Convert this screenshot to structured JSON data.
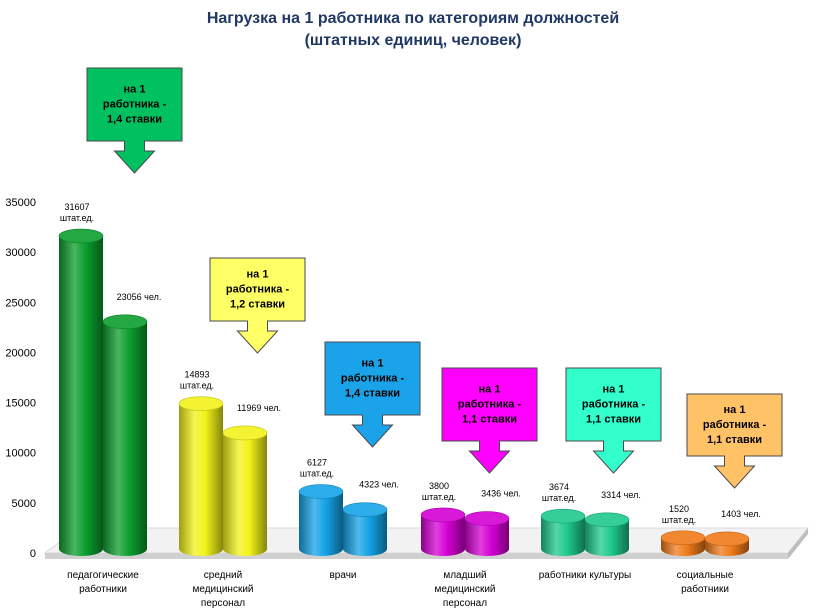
{
  "chart_data": {
    "type": "bar",
    "title_line1": "Нагрузка на 1 работника  по категориям должностей",
    "title_line2": "(штатных единиц, человек)",
    "ylim": [
      0,
      35000
    ],
    "yticks": [
      0,
      5000,
      10000,
      15000,
      20000,
      25000,
      30000,
      35000
    ],
    "categories": [
      [
        "педагогические",
        "работники"
      ],
      [
        "средний",
        "медицинский",
        "персонал"
      ],
      [
        "врачи"
      ],
      [
        "младший",
        "медицинский",
        "персонал"
      ],
      [
        "работники культуры"
      ],
      [
        "социальные",
        "работники"
      ]
    ],
    "series": [
      {
        "values": [
          31607,
          14893,
          6127,
          3800,
          3674,
          1520
        ]
      },
      {
        "values": [
          23056,
          11969,
          4323,
          3436,
          3314,
          1403
        ]
      }
    ],
    "labels_staff": [
      [
        "31607",
        "штат.ед."
      ],
      [
        "14893",
        "штат.ед."
      ],
      [
        "6127",
        "штат.ед."
      ],
      [
        "3800",
        "штат.ед."
      ],
      [
        "3674",
        "штат.ед."
      ],
      [
        "1520",
        "штат.ед."
      ]
    ],
    "labels_people": [
      "23056 чел.",
      "11969 чел.",
      "4323 чел.",
      "3436 чел.",
      "3314 чел.",
      "1403 чел."
    ],
    "callouts": [
      [
        "на 1",
        "работника -",
        "1,4 ставки"
      ],
      [
        "на 1",
        "работника -",
        "1,2 ставки"
      ],
      [
        "на 1",
        "работника -",
        "1,4 ставки"
      ],
      [
        "на 1",
        "работника -",
        "1,1 ставки"
      ],
      [
        "на 1",
        "работника -",
        "1,1 ставки"
      ],
      [
        "на 1",
        "работника -",
        "1,1 ставки"
      ]
    ],
    "colors": [
      "#0c9e2e",
      "#f2f21a",
      "#14a3e6",
      "#d400d4",
      "#1fc98b",
      "#f07a1a"
    ],
    "callout_colors": [
      "#00c060",
      "#ffff66",
      "#1aa3e8",
      "#ff00ff",
      "#33ffcc",
      "#ffc266"
    ]
  }
}
